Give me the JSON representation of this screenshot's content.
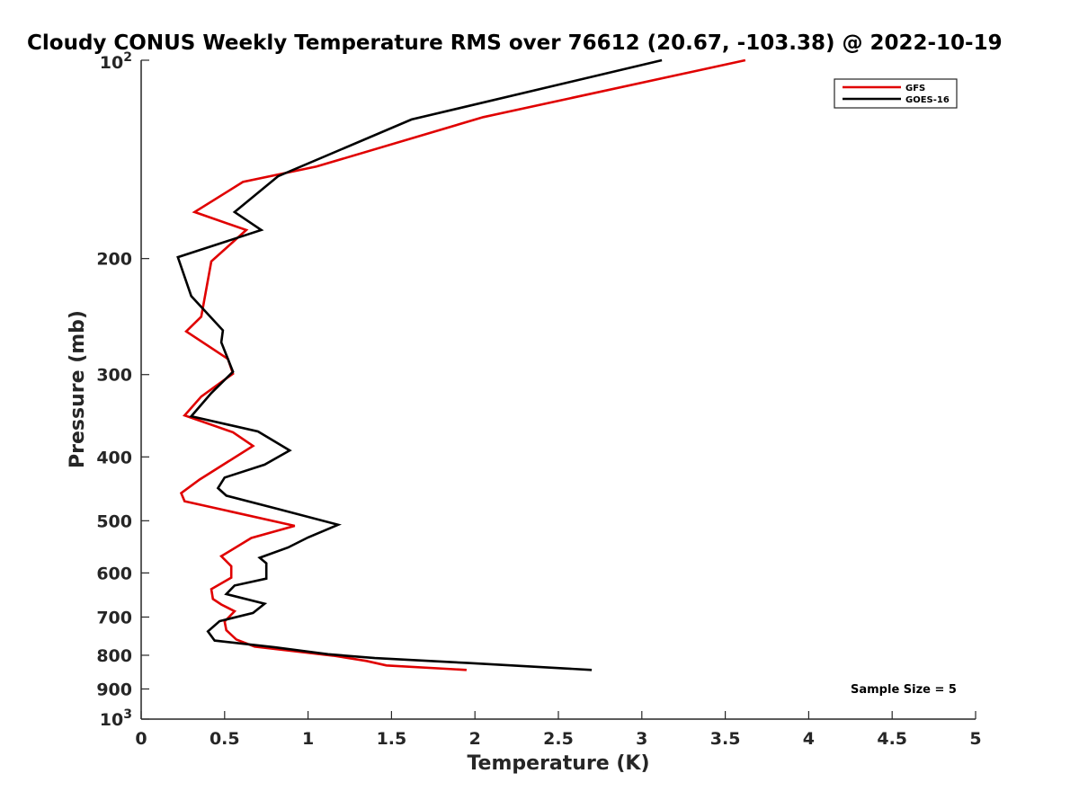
{
  "chart_data": {
    "type": "line",
    "title": "Cloudy CONUS Weekly Temperature RMS over 76612 (20.67, -103.38) @ 2022-10-19",
    "xlabel": "Temperature (K)",
    "ylabel": "Pressure (mb)",
    "xlim": [
      0,
      5
    ],
    "ylim": [
      100,
      1000
    ],
    "y_scale": "log",
    "y_reversed": true,
    "grid": false,
    "legend_position": "top-right",
    "x_ticks": [
      0,
      0.5,
      1,
      1.5,
      2,
      2.5,
      3,
      3.5,
      4,
      4.5,
      5
    ],
    "x_tick_labels": [
      "0",
      "0.5",
      "1",
      "1.5",
      "2",
      "2.5",
      "3",
      "3.5",
      "4",
      "4.5",
      "5"
    ],
    "y_ticks": [
      {
        "value": 200,
        "label": "200"
      },
      {
        "value": 300,
        "label": "300"
      },
      {
        "value": 400,
        "label": "400"
      },
      {
        "value": 500,
        "label": "500"
      },
      {
        "value": 600,
        "label": "600"
      },
      {
        "value": 700,
        "label": "700"
      },
      {
        "value": 800,
        "label": "800"
      },
      {
        "value": 900,
        "label": "900"
      }
    ],
    "y_tick_top": {
      "value": 100,
      "base": "10",
      "exp": "2"
    },
    "y_tick_bottom": {
      "value": 1000,
      "base": "10",
      "exp": "3"
    },
    "annotation": "Sample Size = 5",
    "series": [
      {
        "name": "GFS",
        "color": "#e00000",
        "x": [
          3.62,
          2.05,
          1.05,
          0.61,
          0.32,
          0.63,
          0.42,
          0.38,
          0.36,
          0.27,
          0.52,
          0.55,
          0.36,
          0.26,
          0.55,
          0.67,
          0.35,
          0.24,
          0.26,
          0.92,
          0.66,
          0.48,
          0.54,
          0.54,
          0.42,
          0.43,
          0.48,
          0.56,
          0.5,
          0.51,
          0.57,
          0.68,
          1.15,
          1.35,
          1.47,
          1.95
        ],
        "y": [
          100,
          122,
          145,
          153,
          170,
          181,
          202,
          230,
          245,
          258,
          284,
          299,
          324,
          346,
          367,
          385,
          433,
          454,
          467,
          509,
          531,
          566,
          586,
          610,
          635,
          657,
          670,
          686,
          711,
          733,
          757,
          776,
          801,
          816,
          829,
          842
        ]
      },
      {
        "name": "GOES-16",
        "color": "#000000",
        "x": [
          3.12,
          1.62,
          0.82,
          0.56,
          0.72,
          0.22,
          0.3,
          0.49,
          0.48,
          0.55,
          0.42,
          0.3,
          0.7,
          0.89,
          0.74,
          0.5,
          0.46,
          0.51,
          0.82,
          1.18,
          1.0,
          0.88,
          0.71,
          0.75,
          0.75,
          0.56,
          0.51,
          0.74,
          0.67,
          0.47,
          0.4,
          0.44,
          0.8,
          1.12,
          1.4,
          1.96,
          2.7
        ],
        "y": [
          100,
          123,
          150,
          170,
          181,
          199,
          228,
          257,
          268,
          297,
          320,
          347,
          366,
          391,
          411,
          430,
          446,
          458,
          480,
          507,
          530,
          549,
          569,
          580,
          612,
          627,
          646,
          668,
          690,
          710,
          736,
          760,
          778,
          797,
          808,
          822,
          842
        ]
      }
    ]
  }
}
